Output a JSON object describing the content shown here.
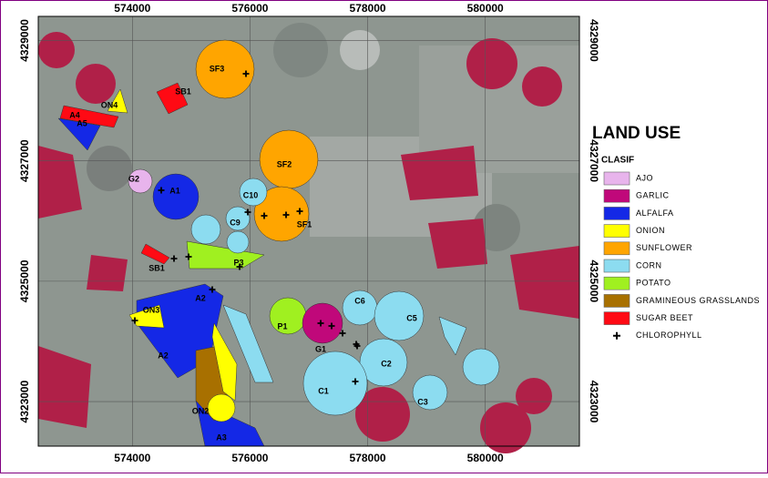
{
  "map": {
    "xlim": [
      572400,
      581600
    ],
    "ylim": [
      4322260,
      4329400
    ],
    "xticks": [
      574000,
      576000,
      578000,
      580000
    ],
    "yticks": [
      4323000,
      4325000,
      4327000,
      4329000
    ],
    "field_labels": [
      "SF3",
      "SB1",
      "ON4",
      "A4",
      "A5",
      "SF2",
      "G2",
      "A1",
      "C10",
      "C9",
      "SF1",
      "SB1",
      "P3",
      "A2",
      "ON3",
      "P1",
      "C6",
      "C5",
      "G1",
      "A2",
      "C2",
      "C1",
      "C3",
      "ON2",
      "A3"
    ]
  },
  "legend": {
    "title": "LAND USE",
    "subtitle": "CLASIF",
    "items": [
      {
        "name": "AJO",
        "color": "#e8b4ec"
      },
      {
        "name": "GARLIC",
        "color": "#c0087a"
      },
      {
        "name": "ALFALFA",
        "color": "#1428e6"
      },
      {
        "name": "ONION",
        "color": "#ffff00"
      },
      {
        "name": "SUNFLOWER",
        "color": "#ffa500"
      },
      {
        "name": "CORN",
        "color": "#8cdcf0"
      },
      {
        "name": "POTATO",
        "color": "#a0f020"
      },
      {
        "name": "GRAMINEOUS GRASSLANDS",
        "color": "#a87000"
      },
      {
        "name": "SUGAR BEET",
        "color": "#ff0a14"
      },
      {
        "name": "CHLOROPHYLL",
        "color": "#000000"
      }
    ]
  }
}
